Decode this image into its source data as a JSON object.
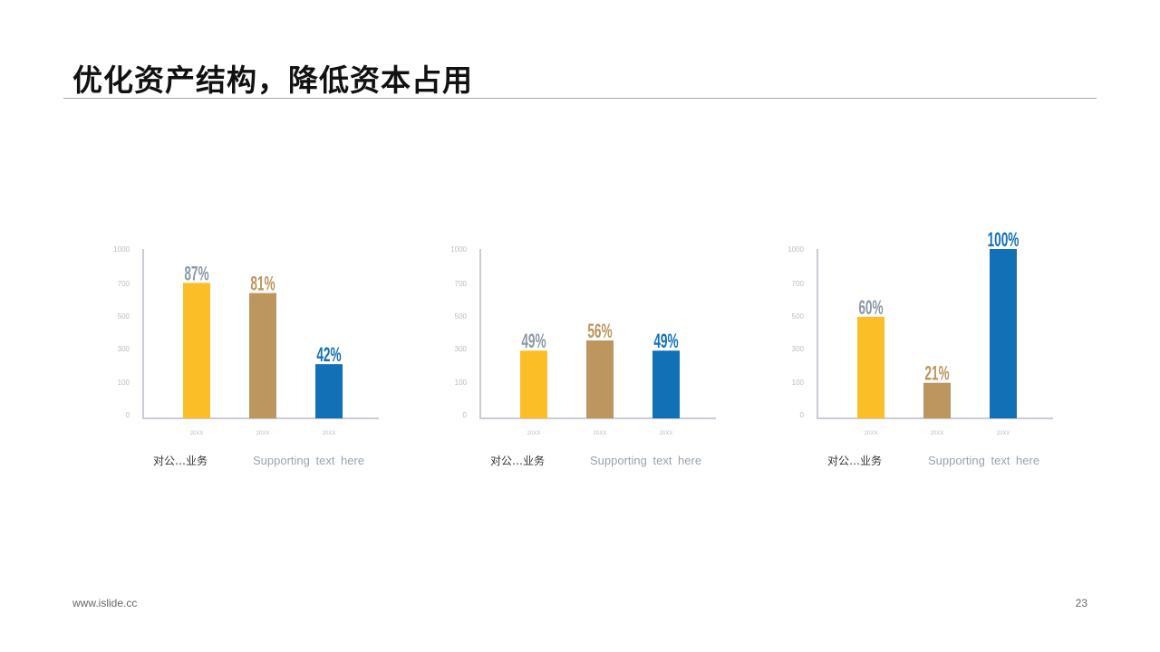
{
  "header": {
    "title": "优化资产结构，降低资本占用"
  },
  "footer": {
    "url": "www.islide.cc",
    "page_number": "23"
  },
  "colors": {
    "yellow": "#fcbe27",
    "tan": "#bd955e",
    "blue": "#1270b6",
    "gray_label": "#8a99a8",
    "axis": "#c9ccd6"
  },
  "charts": [
    {
      "caption": "对公…业务",
      "support": "Supporting  text here"
    },
    {
      "caption": "对公…业务",
      "support": "Supporting  text here"
    },
    {
      "caption": "对公…业务",
      "support": "Supporting  text here"
    }
  ],
  "chart_data": [
    {
      "type": "bar",
      "categories": [
        "20XX",
        "20XX",
        "20XX"
      ],
      "values": [
        800,
        740,
        320
      ],
      "data_labels": [
        "87%",
        "81%",
        "42%"
      ],
      "yticks": [
        "0",
        "100",
        "300",
        "500",
        "700",
        "1000"
      ],
      "ylim": [
        0,
        1000
      ],
      "title": "",
      "xlabel": "",
      "ylabel": ""
    },
    {
      "type": "bar",
      "categories": [
        "20XX",
        "20XX",
        "20XX"
      ],
      "values": [
        400,
        460,
        400
      ],
      "data_labels": [
        "49%",
        "56%",
        "49%"
      ],
      "yticks": [
        "0",
        "100",
        "300",
        "500",
        "700",
        "1000"
      ],
      "ylim": [
        0,
        1000
      ],
      "title": "",
      "xlabel": "",
      "ylabel": ""
    },
    {
      "type": "bar",
      "categories": [
        "20XX",
        "20XX",
        "20XX"
      ],
      "values": [
        600,
        210,
        1000
      ],
      "data_labels": [
        "60%",
        "21%",
        "100%"
      ],
      "yticks": [
        "0",
        "100",
        "300",
        "500",
        "700",
        "1000"
      ],
      "ylim": [
        0,
        1000
      ],
      "title": "",
      "xlabel": "",
      "ylabel": ""
    }
  ]
}
